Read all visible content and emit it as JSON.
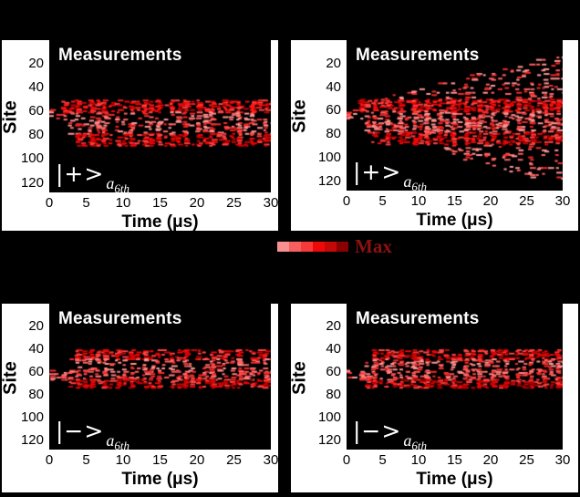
{
  "figure": {
    "background": "#000000",
    "panel_background": "#ffffff",
    "plot_background": "#000000"
  },
  "colorbar": {
    "label": "Max",
    "label_color": "#8e1111",
    "segments": [
      "#f99090",
      "#f66060",
      "#f63a3a",
      "#ee0808",
      "#c40707",
      "#8b0000"
    ]
  },
  "chart_data": [
    {
      "id": "top-left",
      "type": "heatmap",
      "title": "Measurements",
      "xlabel": "Time (μs)",
      "ylabel": "Site",
      "state": {
        "ket": "|+>",
        "sub": "a",
        "subsub": "6th"
      },
      "x_range": [
        0,
        30
      ],
      "y_range": [
        0,
        128
      ],
      "x_ticks": [
        0,
        5,
        10,
        15,
        20,
        25,
        30
      ],
      "y_ticks": [
        20,
        40,
        60,
        80,
        100,
        120
      ],
      "bands": [
        {
          "sites": [
            58,
            66
          ],
          "time": [
            0,
            2
          ],
          "density": 0.45,
          "shades": [
            "#ff9a9a",
            "#ff6b6b",
            "#f03030"
          ]
        },
        {
          "sites": [
            50,
            60
          ],
          "time": [
            1.2,
            30
          ],
          "density": 0.8,
          "shades": [
            "#ee0606",
            "#c60404",
            "#ff4242",
            "#ff1a1a"
          ]
        },
        {
          "sites": [
            60,
            70
          ],
          "time": [
            2,
            30
          ],
          "density": 0.5,
          "shades": [
            "#ff9595",
            "#ff6060",
            "#f22a2a"
          ]
        },
        {
          "sites": [
            70,
            78
          ],
          "time": [
            2.6,
            30
          ],
          "density": 0.55,
          "shades": [
            "#ff6b6b",
            "#f02020",
            "#ff9595"
          ]
        },
        {
          "sites": [
            78,
            88
          ],
          "time": [
            3.2,
            30
          ],
          "density": 0.75,
          "shades": [
            "#ee0606",
            "#c60404",
            "#ff4242"
          ]
        }
      ]
    },
    {
      "id": "top-right",
      "type": "heatmap",
      "title": "Measurements",
      "xlabel": "Time (μs)",
      "ylabel": "Site",
      "state": {
        "ket": "|+>",
        "sub": "a",
        "subsub": "6th"
      },
      "x_range": [
        0,
        30
      ],
      "y_range": [
        0,
        128
      ],
      "x_ticks": [
        0,
        5,
        10,
        15,
        20,
        25,
        30
      ],
      "y_ticks": [
        20,
        40,
        60,
        80,
        100,
        120
      ],
      "bands": [
        {
          "sites": [
            58,
            66
          ],
          "time": [
            0,
            2
          ],
          "density": 0.45,
          "shades": [
            "#ff9a9a",
            "#ff6b6b",
            "#f03030"
          ]
        },
        {
          "sites": [
            50,
            60
          ],
          "time": [
            1.2,
            30
          ],
          "density": 0.85,
          "shades": [
            "#ee0606",
            "#c60404",
            "#ff4242",
            "#ff1a1a"
          ]
        },
        {
          "sites": [
            60,
            70
          ],
          "time": [
            2,
            30
          ],
          "density": 0.6,
          "shades": [
            "#ff9595",
            "#ff6060",
            "#f22a2a"
          ]
        },
        {
          "sites": [
            70,
            78
          ],
          "time": [
            2.6,
            30
          ],
          "density": 0.6,
          "shades": [
            "#ff6b6b",
            "#f02020",
            "#ff9595"
          ]
        },
        {
          "sites": [
            78,
            88
          ],
          "time": [
            3.2,
            30
          ],
          "density": 0.78,
          "shades": [
            "#ee0606",
            "#c60404",
            "#ff4242"
          ]
        },
        {
          "type": "cone",
          "time": [
            2.5,
            30
          ],
          "apex": 52,
          "edge": 10,
          "base": 51,
          "density": 0.3,
          "shades": [
            "#ff9595",
            "#ff6060",
            "#f22a2a"
          ]
        },
        {
          "type": "cone",
          "time": [
            10,
            30
          ],
          "apex": 90,
          "edge": 123,
          "base": 89,
          "density": 0.26,
          "shades": [
            "#ff9595",
            "#ff6060",
            "#f22a2a"
          ]
        }
      ]
    },
    {
      "id": "bottom-left",
      "type": "heatmap",
      "title": "Measurements",
      "xlabel": "Time (μs)",
      "ylabel": "Site",
      "state": {
        "ket": "|−>",
        "sub": "a",
        "subsub": "6th"
      },
      "x_range": [
        0,
        30
      ],
      "y_range": [
        0,
        128
      ],
      "x_ticks": [
        0,
        5,
        10,
        15,
        20,
        25,
        30
      ],
      "y_ticks": [
        20,
        40,
        60,
        80,
        100,
        120
      ],
      "bands": [
        {
          "sites": [
            58,
            66
          ],
          "time": [
            0,
            2
          ],
          "density": 0.45,
          "shades": [
            "#ff9a9a",
            "#ff6b6b",
            "#f03030"
          ]
        },
        {
          "sites": [
            40,
            48
          ],
          "time": [
            3.5,
            30
          ],
          "density": 0.75,
          "shades": [
            "#ee0606",
            "#c60404",
            "#ff4242"
          ]
        },
        {
          "sites": [
            48,
            59
          ],
          "time": [
            2.5,
            30
          ],
          "density": 0.5,
          "shades": [
            "#ff9595",
            "#ff6060",
            "#f22a2a"
          ]
        },
        {
          "sites": [
            59,
            66
          ],
          "time": [
            1.2,
            30
          ],
          "density": 0.6,
          "shades": [
            "#ff8080",
            "#ff5050",
            "#f22a2a"
          ]
        },
        {
          "sites": [
            66,
            73
          ],
          "time": [
            2,
            30
          ],
          "density": 0.85,
          "shades": [
            "#ee0606",
            "#c60404",
            "#ff4242",
            "#a80000"
          ]
        }
      ]
    },
    {
      "id": "bottom-right",
      "type": "heatmap",
      "title": "Measurements",
      "xlabel": "Time (μs)",
      "ylabel": "Site",
      "state": {
        "ket": "|−>",
        "sub": "a",
        "subsub": "6th"
      },
      "x_range": [
        0,
        30
      ],
      "y_range": [
        0,
        128
      ],
      "x_ticks": [
        0,
        5,
        10,
        15,
        20,
        25,
        30
      ],
      "y_ticks": [
        20,
        40,
        60,
        80,
        100,
        120
      ],
      "bands": [
        {
          "sites": [
            58,
            66
          ],
          "time": [
            0,
            2
          ],
          "density": 0.45,
          "shades": [
            "#ff9a9a",
            "#ff6b6b",
            "#f03030"
          ]
        },
        {
          "sites": [
            40,
            48
          ],
          "time": [
            3.5,
            30
          ],
          "density": 0.8,
          "shades": [
            "#ee0606",
            "#c60404",
            "#ff4242"
          ]
        },
        {
          "sites": [
            48,
            59
          ],
          "time": [
            2.5,
            30
          ],
          "density": 0.52,
          "shades": [
            "#ff9595",
            "#ff6060",
            "#f22a2a"
          ]
        },
        {
          "sites": [
            59,
            66
          ],
          "time": [
            1.2,
            30
          ],
          "density": 0.62,
          "shades": [
            "#ff8080",
            "#ff5050",
            "#f22a2a"
          ]
        },
        {
          "sites": [
            66,
            73
          ],
          "time": [
            2,
            30
          ],
          "density": 0.88,
          "shades": [
            "#ee0606",
            "#c60404",
            "#ff4242",
            "#a80000"
          ]
        }
      ]
    }
  ]
}
